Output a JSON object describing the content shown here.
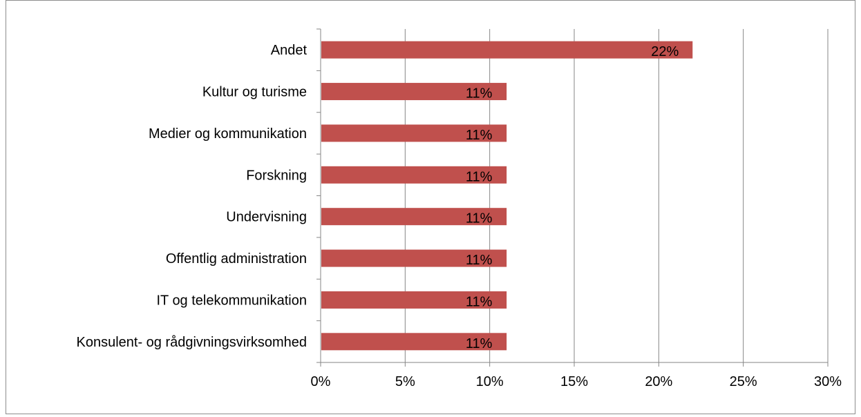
{
  "chart_data": {
    "type": "bar",
    "orientation": "horizontal",
    "categories": [
      "Andet",
      "Kultur og turisme",
      "Medier og kommunikation",
      "Forskning",
      "Undervisning",
      "Offentlig administration",
      "IT og telekommunikation",
      "Konsulent- og rådgivningsvirksomhed"
    ],
    "values": [
      22,
      11,
      11,
      11,
      11,
      11,
      11,
      11
    ],
    "data_labels": [
      "22%",
      "11%",
      "11%",
      "11%",
      "11%",
      "11%",
      "11%",
      "11%"
    ],
    "x_ticks": [
      "0%",
      "5%",
      "10%",
      "15%",
      "20%",
      "25%",
      "30%"
    ],
    "xlim": [
      0,
      30
    ],
    "xlabel": "",
    "ylabel": "",
    "title": "",
    "grid": "vertical",
    "legend": "none",
    "bar_color": "#c0504d",
    "grid_color": "#868686"
  }
}
